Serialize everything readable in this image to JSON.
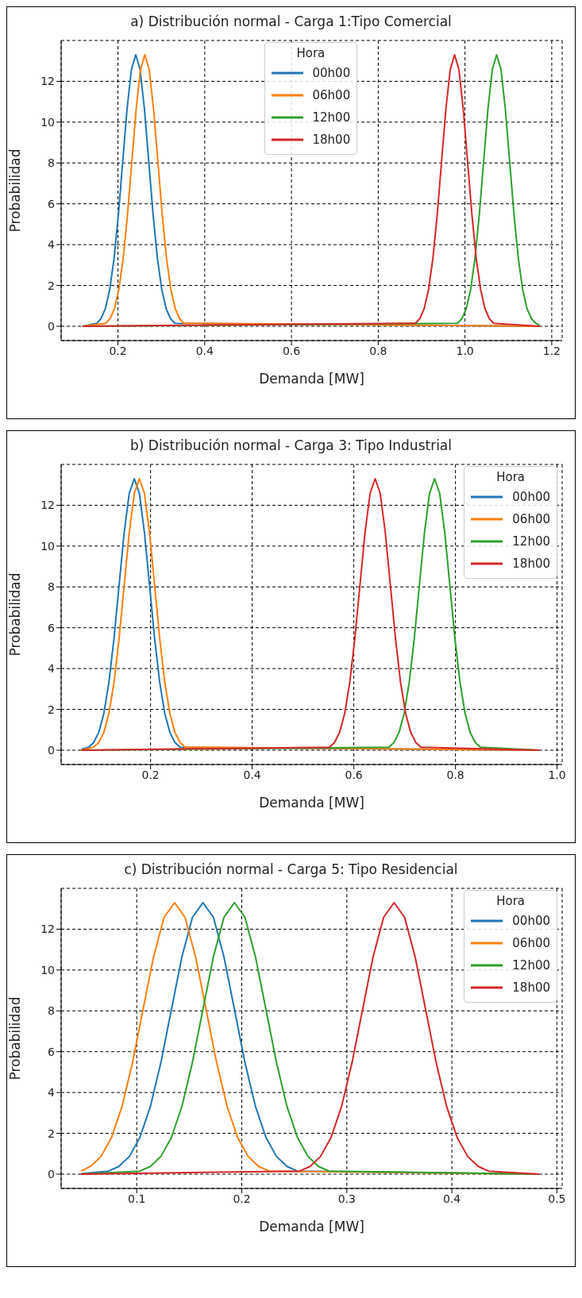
{
  "chart_data": [
    {
      "type": "line",
      "title": "a) Distribución normal - Carga 1:Tipo Comercial",
      "xlabel": "Demanda [MW]",
      "ylabel": "Probabilidad",
      "legend_title": "Hora",
      "legend": "top center",
      "grid": true,
      "xlim": [
        0.069,
        1.224
      ],
      "ylim": [
        -0.7,
        14.0
      ],
      "xticks": [
        0.2,
        0.4,
        0.6,
        0.8,
        {
          "value": 1,
          "label": "1.0"
        },
        1.2
      ],
      "yticks": [
        0,
        2,
        4,
        6,
        8,
        10,
        12
      ],
      "series": [
        {
          "name": "00h00",
          "color": "#1f77b4",
          "x": [
            0.118,
            0.151,
            0.161,
            0.171,
            0.181,
            0.191,
            0.201,
            0.211,
            0.221,
            0.231,
            0.241,
            0.251,
            0.261,
            0.271,
            0.281,
            0.291,
            0.301,
            0.311,
            0.321,
            0.331,
            1.172
          ],
          "values": [
            0,
            0.15,
            0.38,
            0.87,
            1.8,
            3.32,
            5.47,
            8.07,
            10.65,
            12.58,
            13.3,
            12.58,
            10.65,
            8.07,
            5.47,
            3.32,
            1.8,
            0.87,
            0.38,
            0.15,
            0
          ]
        },
        {
          "name": "06h00",
          "color": "#ff7f0e",
          "x": [
            0.118,
            0.172,
            0.182,
            0.192,
            0.202,
            0.212,
            0.222,
            0.232,
            0.242,
            0.252,
            0.262,
            0.272,
            0.282,
            0.292,
            0.302,
            0.312,
            0.322,
            0.332,
            0.342,
            0.352,
            1.172
          ],
          "values": [
            0,
            0.15,
            0.38,
            0.87,
            1.8,
            3.32,
            5.47,
            8.07,
            10.65,
            12.58,
            13.3,
            12.58,
            10.65,
            8.07,
            5.47,
            3.32,
            1.8,
            0.87,
            0.38,
            0.15,
            0
          ]
        },
        {
          "name": "12h00",
          "color": "#2ca02c",
          "x": [
            0.118,
            0.983,
            0.993,
            1.003,
            1.013,
            1.023,
            1.033,
            1.043,
            1.053,
            1.063,
            1.073,
            1.083,
            1.093,
            1.103,
            1.113,
            1.123,
            1.133,
            1.143,
            1.153,
            1.163,
            1.172
          ],
          "values": [
            0,
            0.15,
            0.38,
            0.87,
            1.8,
            3.32,
            5.47,
            8.07,
            10.65,
            12.58,
            13.3,
            12.58,
            10.65,
            8.07,
            5.47,
            3.32,
            1.8,
            0.87,
            0.38,
            0.15,
            0.05
          ]
        },
        {
          "name": "18h00",
          "color": "#d62728",
          "x": [
            0.118,
            0.886,
            0.896,
            0.906,
            0.916,
            0.926,
            0.936,
            0.946,
            0.956,
            0.966,
            0.976,
            0.986,
            0.996,
            1.006,
            1.016,
            1.026,
            1.036,
            1.046,
            1.056,
            1.066,
            1.172
          ],
          "values": [
            0,
            0.15,
            0.38,
            0.87,
            1.8,
            3.32,
            5.47,
            8.07,
            10.65,
            12.58,
            13.3,
            12.58,
            10.65,
            8.07,
            5.47,
            3.32,
            1.8,
            0.87,
            0.38,
            0.15,
            0
          ]
        }
      ]
    },
    {
      "type": "line",
      "title": "b) Distribución normal - Carga 3: Tipo Industrial",
      "xlabel": "Demanda [MW]",
      "ylabel": "Probabilidad",
      "legend_title": "Hora",
      "legend": "top right",
      "grid": true,
      "xlim": [
        0.024,
        1.01
      ],
      "ylim": [
        -0.7,
        14.0
      ],
      "xticks": [
        0.2,
        0.4,
        0.6,
        0.8,
        {
          "value": 1,
          "label": "1.0"
        }
      ],
      "yticks": [
        0,
        2,
        4,
        6,
        8,
        10,
        12
      ],
      "series": [
        {
          "name": "00h00",
          "color": "#1f77b4",
          "x": [
            0.064,
            0.078,
            0.088,
            0.098,
            0.108,
            0.118,
            0.128,
            0.138,
            0.148,
            0.158,
            0.168,
            0.178,
            0.188,
            0.198,
            0.208,
            0.218,
            0.228,
            0.238,
            0.248,
            0.258,
            0.965
          ],
          "values": [
            0.05,
            0.15,
            0.38,
            0.87,
            1.8,
            3.32,
            5.47,
            8.07,
            10.65,
            12.58,
            13.3,
            12.58,
            10.65,
            8.07,
            5.47,
            3.32,
            1.8,
            0.87,
            0.38,
            0.15,
            0
          ]
        },
        {
          "name": "06h00",
          "color": "#ff7f0e",
          "x": [
            0.064,
            0.088,
            0.098,
            0.108,
            0.118,
            0.128,
            0.138,
            0.148,
            0.158,
            0.168,
            0.178,
            0.188,
            0.198,
            0.208,
            0.218,
            0.228,
            0.238,
            0.248,
            0.258,
            0.268,
            0.965
          ],
          "values": [
            0,
            0.15,
            0.38,
            0.87,
            1.8,
            3.32,
            5.47,
            8.07,
            10.65,
            12.58,
            13.3,
            12.58,
            10.65,
            8.07,
            5.47,
            3.32,
            1.8,
            0.87,
            0.38,
            0.15,
            0
          ]
        },
        {
          "name": "12h00",
          "color": "#2ca02c",
          "x": [
            0.064,
            0.669,
            0.679,
            0.689,
            0.699,
            0.709,
            0.719,
            0.729,
            0.739,
            0.749,
            0.759,
            0.769,
            0.779,
            0.789,
            0.799,
            0.809,
            0.819,
            0.829,
            0.839,
            0.849,
            0.965
          ],
          "values": [
            0,
            0.15,
            0.38,
            0.87,
            1.8,
            3.32,
            5.47,
            8.07,
            10.65,
            12.58,
            13.3,
            12.58,
            10.65,
            8.07,
            5.47,
            3.32,
            1.8,
            0.87,
            0.38,
            0.15,
            0
          ]
        },
        {
          "name": "18h00",
          "color": "#d62728",
          "x": [
            0.064,
            0.552,
            0.562,
            0.572,
            0.582,
            0.592,
            0.602,
            0.612,
            0.622,
            0.632,
            0.642,
            0.652,
            0.662,
            0.672,
            0.682,
            0.692,
            0.702,
            0.712,
            0.722,
            0.732,
            0.965
          ],
          "values": [
            0,
            0.15,
            0.38,
            0.87,
            1.8,
            3.32,
            5.47,
            8.07,
            10.65,
            12.58,
            13.3,
            12.58,
            10.65,
            8.07,
            5.47,
            3.32,
            1.8,
            0.87,
            0.38,
            0.15,
            0
          ]
        }
      ]
    },
    {
      "type": "line",
      "title": "c) Distribución normal - Carga 5: Tipo Residencial",
      "xlabel": "Demanda [MW]",
      "ylabel": "Probabilidad",
      "legend_title": "Hora",
      "legend": "top right",
      "grid": true,
      "xlim": [
        0.028,
        0.505
      ],
      "ylim": [
        -0.7,
        14.0
      ],
      "xticks": [
        0.1,
        0.2,
        0.3,
        0.4,
        0.5
      ],
      "yticks": [
        0,
        2,
        4,
        6,
        8,
        10,
        12
      ],
      "series": [
        {
          "name": "00h00",
          "color": "#1f77b4",
          "x": [
            0.047,
            0.073,
            0.083,
            0.093,
            0.103,
            0.113,
            0.123,
            0.133,
            0.143,
            0.153,
            0.163,
            0.173,
            0.183,
            0.193,
            0.203,
            0.213,
            0.223,
            0.233,
            0.243,
            0.253,
            0.483
          ],
          "values": [
            0.02,
            0.15,
            0.38,
            0.87,
            1.8,
            3.32,
            5.47,
            8.07,
            10.65,
            12.58,
            13.3,
            12.58,
            10.65,
            8.07,
            5.47,
            3.32,
            1.8,
            0.87,
            0.38,
            0.15,
            0
          ]
        },
        {
          "name": "06h00",
          "color": "#ff7f0e",
          "x": [
            0.047,
            0.056,
            0.066,
            0.076,
            0.086,
            0.096,
            0.106,
            0.116,
            0.126,
            0.136,
            0.146,
            0.156,
            0.166,
            0.176,
            0.186,
            0.196,
            0.206,
            0.216,
            0.226,
            0.483
          ],
          "values": [
            0.15,
            0.38,
            0.87,
            1.8,
            3.32,
            5.47,
            8.07,
            10.65,
            12.58,
            13.3,
            12.58,
            10.65,
            8.07,
            5.47,
            3.32,
            1.8,
            0.87,
            0.38,
            0.15,
            0
          ]
        },
        {
          "name": "12h00",
          "color": "#2ca02c",
          "x": [
            0.047,
            0.103,
            0.113,
            0.123,
            0.133,
            0.143,
            0.153,
            0.163,
            0.173,
            0.183,
            0.193,
            0.203,
            0.213,
            0.223,
            0.233,
            0.243,
            0.253,
            0.263,
            0.273,
            0.283,
            0.483
          ],
          "values": [
            0,
            0.15,
            0.38,
            0.87,
            1.8,
            3.32,
            5.47,
            8.07,
            10.65,
            12.58,
            13.3,
            12.58,
            10.65,
            8.07,
            5.47,
            3.32,
            1.8,
            0.87,
            0.38,
            0.15,
            0
          ]
        },
        {
          "name": "18h00",
          "color": "#d62728",
          "x": [
            0.047,
            0.255,
            0.265,
            0.275,
            0.285,
            0.295,
            0.305,
            0.315,
            0.325,
            0.335,
            0.345,
            0.355,
            0.365,
            0.375,
            0.385,
            0.395,
            0.405,
            0.415,
            0.425,
            0.435,
            0.483
          ],
          "values": [
            0,
            0.15,
            0.38,
            0.87,
            1.8,
            3.32,
            5.47,
            8.07,
            10.65,
            12.58,
            13.3,
            12.58,
            10.65,
            8.07,
            5.47,
            3.32,
            1.8,
            0.87,
            0.38,
            0.15,
            0
          ]
        }
      ]
    }
  ]
}
